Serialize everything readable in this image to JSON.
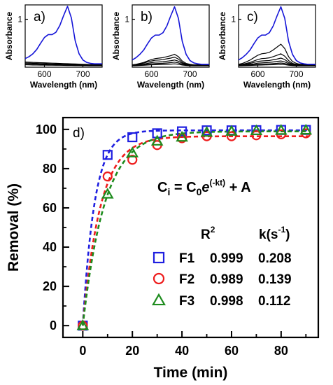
{
  "colors": {
    "F1": "#1f1fe0",
    "F2": "#ee1c1c",
    "F3": "#1e8c1e",
    "spectra_highlight": "#1515d8",
    "spectra_other": "#000000"
  },
  "chart_data": [
    {
      "id": "a",
      "type": "line",
      "panel_label": "a)",
      "xlabel": "Wavelength (nm)",
      "ylabel": "Absorbance",
      "xlim": [
        550,
        750
      ],
      "ylim": [
        0,
        1.3
      ],
      "xticks": [
        600,
        700
      ],
      "yticks": [
        1
      ],
      "x": [
        550,
        560,
        570,
        580,
        590,
        600,
        610,
        620,
        630,
        640,
        650,
        660,
        670,
        680,
        690,
        700,
        710,
        720,
        730,
        740,
        750
      ],
      "series": [
        {
          "color": "#1515d8",
          "values": [
            0.18,
            0.22,
            0.28,
            0.37,
            0.5,
            0.62,
            0.68,
            0.68,
            0.73,
            0.87,
            1.08,
            1.27,
            1.03,
            0.55,
            0.28,
            0.15,
            0.1,
            0.08,
            0.07,
            0.07,
            0.07
          ]
        },
        {
          "color": "#000000",
          "values": [
            0.11,
            0.105,
            0.1,
            0.097,
            0.094,
            0.091,
            0.088,
            0.085,
            0.082,
            0.079,
            0.076,
            0.073,
            0.07,
            0.067,
            0.064,
            0.061,
            0.058,
            0.055,
            0.053,
            0.051,
            0.049
          ]
        },
        {
          "color": "#000000",
          "values": [
            0.09,
            0.086,
            0.082,
            0.079,
            0.076,
            0.073,
            0.07,
            0.068,
            0.066,
            0.064,
            0.062,
            0.06,
            0.058,
            0.056,
            0.054,
            0.052,
            0.05,
            0.048,
            0.046,
            0.044,
            0.042
          ]
        },
        {
          "color": "#000000",
          "values": [
            0.07,
            0.067,
            0.064,
            0.062,
            0.06,
            0.058,
            0.056,
            0.054,
            0.052,
            0.05,
            0.048,
            0.046,
            0.044,
            0.042,
            0.04,
            0.039,
            0.038,
            0.037,
            0.036,
            0.035,
            0.034
          ]
        },
        {
          "color": "#000000",
          "values": [
            0.05,
            0.048,
            0.046,
            0.045,
            0.044,
            0.043,
            0.042,
            0.041,
            0.04,
            0.039,
            0.038,
            0.037,
            0.036,
            0.035,
            0.034,
            0.033,
            0.032,
            0.031,
            0.03,
            0.03,
            0.03
          ]
        }
      ]
    },
    {
      "id": "b",
      "type": "line",
      "panel_label": "b)",
      "xlabel": "Wavelength (nm)",
      "ylabel": "Absorbance",
      "xlim": [
        550,
        750
      ],
      "ylim": [
        0,
        1.3
      ],
      "xticks": [
        600,
        700
      ],
      "yticks": [
        1
      ],
      "x": [
        550,
        560,
        570,
        580,
        590,
        600,
        610,
        620,
        630,
        640,
        650,
        660,
        670,
        680,
        690,
        700,
        710,
        720,
        730,
        740,
        750
      ],
      "series": [
        {
          "color": "#1515d8",
          "values": [
            0.15,
            0.2,
            0.27,
            0.36,
            0.49,
            0.61,
            0.67,
            0.67,
            0.72,
            0.86,
            1.07,
            1.26,
            1.02,
            0.54,
            0.27,
            0.14,
            0.09,
            0.07,
            0.06,
            0.06,
            0.06
          ]
        },
        {
          "color": "#000000",
          "values": [
            0.05,
            0.06,
            0.08,
            0.1,
            0.13,
            0.16,
            0.18,
            0.19,
            0.2,
            0.22,
            0.24,
            0.27,
            0.22,
            0.13,
            0.08,
            0.06,
            0.05,
            0.05,
            0.05,
            0.05,
            0.05
          ]
        },
        {
          "color": "#000000",
          "values": [
            0.045,
            0.055,
            0.07,
            0.085,
            0.11,
            0.13,
            0.145,
            0.15,
            0.16,
            0.175,
            0.19,
            0.21,
            0.17,
            0.1,
            0.065,
            0.05,
            0.045,
            0.045,
            0.045,
            0.045,
            0.045
          ]
        },
        {
          "color": "#000000",
          "values": [
            0.04,
            0.045,
            0.055,
            0.065,
            0.08,
            0.095,
            0.105,
            0.11,
            0.115,
            0.125,
            0.135,
            0.15,
            0.125,
            0.08,
            0.055,
            0.045,
            0.04,
            0.04,
            0.04,
            0.04,
            0.04
          ]
        },
        {
          "color": "#000000",
          "values": [
            0.035,
            0.04,
            0.045,
            0.05,
            0.06,
            0.07,
            0.075,
            0.078,
            0.082,
            0.088,
            0.095,
            0.105,
            0.09,
            0.06,
            0.045,
            0.038,
            0.035,
            0.035,
            0.035,
            0.035,
            0.035
          ]
        },
        {
          "color": "#000000",
          "values": [
            0.03,
            0.033,
            0.036,
            0.04,
            0.045,
            0.05,
            0.053,
            0.055,
            0.057,
            0.06,
            0.064,
            0.07,
            0.062,
            0.045,
            0.036,
            0.032,
            0.03,
            0.03,
            0.03,
            0.03,
            0.03
          ]
        }
      ]
    },
    {
      "id": "c",
      "type": "line",
      "panel_label": "c)",
      "xlabel": "Wavelength (nm)",
      "ylabel": "Absorbance",
      "xlim": [
        550,
        750
      ],
      "ylim": [
        0,
        1.3
      ],
      "xticks": [
        600,
        700
      ],
      "yticks": [
        1
      ],
      "x": [
        550,
        560,
        570,
        580,
        590,
        600,
        610,
        620,
        630,
        640,
        650,
        660,
        670,
        680,
        690,
        700,
        710,
        720,
        730,
        740,
        750
      ],
      "series": [
        {
          "color": "#1515d8",
          "values": [
            0.15,
            0.2,
            0.27,
            0.36,
            0.49,
            0.61,
            0.67,
            0.67,
            0.72,
            0.86,
            1.07,
            1.26,
            1.02,
            0.54,
            0.27,
            0.14,
            0.09,
            0.07,
            0.06,
            0.06,
            0.06
          ]
        },
        {
          "color": "#000000",
          "values": [
            0.06,
            0.08,
            0.11,
            0.15,
            0.2,
            0.25,
            0.28,
            0.29,
            0.31,
            0.36,
            0.42,
            0.48,
            0.39,
            0.22,
            0.12,
            0.08,
            0.06,
            0.06,
            0.06,
            0.06,
            0.06
          ]
        },
        {
          "color": "#000000",
          "values": [
            0.05,
            0.06,
            0.08,
            0.1,
            0.13,
            0.16,
            0.18,
            0.185,
            0.195,
            0.22,
            0.25,
            0.28,
            0.23,
            0.14,
            0.08,
            0.06,
            0.05,
            0.05,
            0.05,
            0.05,
            0.05
          ]
        },
        {
          "color": "#000000",
          "values": [
            0.045,
            0.05,
            0.065,
            0.08,
            0.1,
            0.12,
            0.13,
            0.135,
            0.14,
            0.155,
            0.17,
            0.19,
            0.16,
            0.1,
            0.065,
            0.05,
            0.045,
            0.045,
            0.045,
            0.045,
            0.045
          ]
        },
        {
          "color": "#000000",
          "values": [
            0.04,
            0.045,
            0.05,
            0.06,
            0.07,
            0.085,
            0.09,
            0.095,
            0.1,
            0.11,
            0.12,
            0.13,
            0.11,
            0.075,
            0.05,
            0.042,
            0.04,
            0.04,
            0.04,
            0.04,
            0.04
          ]
        },
        {
          "color": "#000000",
          "values": [
            0.035,
            0.038,
            0.042,
            0.046,
            0.052,
            0.06,
            0.063,
            0.066,
            0.07,
            0.075,
            0.08,
            0.088,
            0.077,
            0.055,
            0.042,
            0.037,
            0.035,
            0.035,
            0.035,
            0.035,
            0.035
          ]
        },
        {
          "color": "#000000",
          "values": [
            0.03,
            0.032,
            0.034,
            0.037,
            0.04,
            0.044,
            0.046,
            0.048,
            0.05,
            0.053,
            0.056,
            0.06,
            0.054,
            0.042,
            0.034,
            0.031,
            0.03,
            0.03,
            0.03,
            0.03,
            0.03
          ]
        }
      ]
    },
    {
      "id": "d",
      "type": "scatter",
      "panel_label": "d)",
      "xlabel": "Time (min)",
      "ylabel": "Removal (%)",
      "xlim": [
        -8,
        95
      ],
      "ylim": [
        -6,
        106
      ],
      "xticks": [
        0,
        20,
        40,
        60,
        80
      ],
      "yticks": [
        0,
        20,
        40,
        60,
        80,
        100
      ],
      "equation": {
        "lhs": "C",
        "lhs_sub": "i",
        "eq": " = C",
        "c0_sub": "0",
        "e": "e",
        "exp": "(-kt)",
        "rest": " + A"
      },
      "table_header": {
        "r2": "R",
        "r2_sup": "2",
        "k": "k(s",
        "k_sup": "-1",
        "k_close": ")"
      },
      "series": [
        {
          "name": "F1",
          "marker": "square",
          "color": "#1f1fe0",
          "r2": "0.999",
          "k": "0.208",
          "x": [
            0,
            10,
            20,
            30,
            40,
            50,
            60,
            70,
            80,
            90
          ],
          "y": [
            0,
            87,
            96,
            98,
            99,
            99.5,
            99.5,
            99.6,
            99.7,
            99.7
          ],
          "fit_k": 0.208,
          "fit_A": 99.5
        },
        {
          "name": "F2",
          "marker": "circle",
          "color": "#ee1c1c",
          "r2": "0.989",
          "k": "0.139",
          "x": [
            0,
            10,
            20,
            30,
            40,
            50,
            60,
            70,
            80,
            90
          ],
          "y": [
            0,
            76,
            84.5,
            92,
            95.5,
            96.5,
            96.5,
            97,
            97.5,
            98
          ],
          "fit_k": 0.139,
          "fit_A": 96.5
        },
        {
          "name": "F3",
          "marker": "triangle",
          "color": "#1e8c1e",
          "r2": "0.998",
          "k": "0.112",
          "x": [
            0,
            10,
            20,
            30,
            40,
            50,
            60,
            70,
            80,
            90
          ],
          "y": [
            0,
            67,
            88,
            94,
            96,
            98.5,
            99,
            99.3,
            99.5,
            99.6
          ],
          "fit_k": 0.112,
          "fit_A": 99
        }
      ]
    }
  ]
}
